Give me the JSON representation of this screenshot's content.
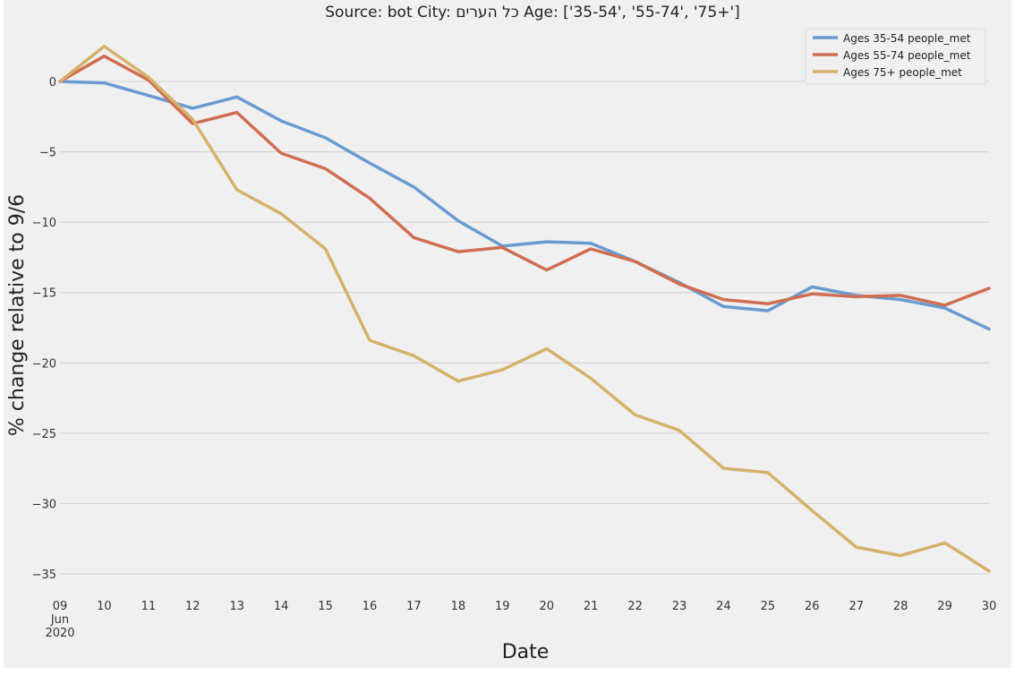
{
  "chart_data": {
    "type": "line",
    "title": "Source: bot City: כל הערים Age: ['35-54', '55-74', '75+']",
    "xlabel": "Date",
    "ylabel": "% change relative to 9/6",
    "x": [
      "2020-06-09",
      "2020-06-10",
      "2020-06-11",
      "2020-06-12",
      "2020-06-13",
      "2020-06-14",
      "2020-06-15",
      "2020-06-16",
      "2020-06-17",
      "2020-06-18",
      "2020-06-19",
      "2020-06-20",
      "2020-06-21",
      "2020-06-22",
      "2020-06-23",
      "2020-06-24",
      "2020-06-25",
      "2020-06-26",
      "2020-06-27",
      "2020-06-28",
      "2020-06-29",
      "2020-06-30"
    ],
    "xtick_labels": [
      {
        "day": "09",
        "month": "Jun",
        "year": "2020"
      },
      {
        "day": "10"
      },
      {
        "day": "11"
      },
      {
        "day": "12"
      },
      {
        "day": "13"
      },
      {
        "day": "14"
      },
      {
        "day": "15"
      },
      {
        "day": "16"
      },
      {
        "day": "17"
      },
      {
        "day": "18"
      },
      {
        "day": "19"
      },
      {
        "day": "20"
      },
      {
        "day": "21"
      },
      {
        "day": "22"
      },
      {
        "day": "23"
      },
      {
        "day": "24"
      },
      {
        "day": "25"
      },
      {
        "day": "26"
      },
      {
        "day": "27"
      },
      {
        "day": "28"
      },
      {
        "day": "29"
      },
      {
        "day": "30"
      }
    ],
    "yticks": [
      0,
      -5,
      -10,
      -15,
      -20,
      -25,
      -30,
      -35
    ],
    "ytick_labels": [
      "0",
      "−5",
      "−10",
      "−15",
      "−20",
      "−25",
      "−30",
      "−35"
    ],
    "ylim": [
      -36.5,
      3.2
    ],
    "grid": "horizontal",
    "legend_position": "top-right",
    "series": [
      {
        "name": "Ages 35-54 people_met",
        "color": "#6a9bd0",
        "values": [
          0,
          -0.1,
          -1.0,
          -1.9,
          -1.1,
          -2.8,
          -4.0,
          -5.8,
          -7.5,
          -9.9,
          -11.7,
          -11.4,
          -11.5,
          -12.8,
          -14.3,
          -16.0,
          -16.3,
          -14.6,
          -15.2,
          -15.5,
          -16.1,
          -17.6
        ]
      },
      {
        "name": "Ages 55-74 people_met",
        "color": "#cf6e52",
        "values": [
          0,
          1.8,
          0.1,
          -3.0,
          -2.2,
          -5.1,
          -6.2,
          -8.3,
          -11.1,
          -12.1,
          -11.8,
          -13.4,
          -11.9,
          -12.8,
          -14.4,
          -15.5,
          -15.8,
          -15.1,
          -15.3,
          -15.2,
          -15.9,
          -14.7
        ]
      },
      {
        "name": "Ages 75+ people_met",
        "color": "#d5b26b",
        "values": [
          0,
          2.5,
          0.3,
          -2.7,
          -7.7,
          -9.4,
          -11.9,
          -18.4,
          -19.5,
          -21.3,
          -20.5,
          -19.0,
          -21.1,
          -23.7,
          -24.8,
          -27.5,
          -27.8,
          -30.5,
          -33.1,
          -33.7,
          -32.8,
          -34.8
        ]
      }
    ]
  }
}
